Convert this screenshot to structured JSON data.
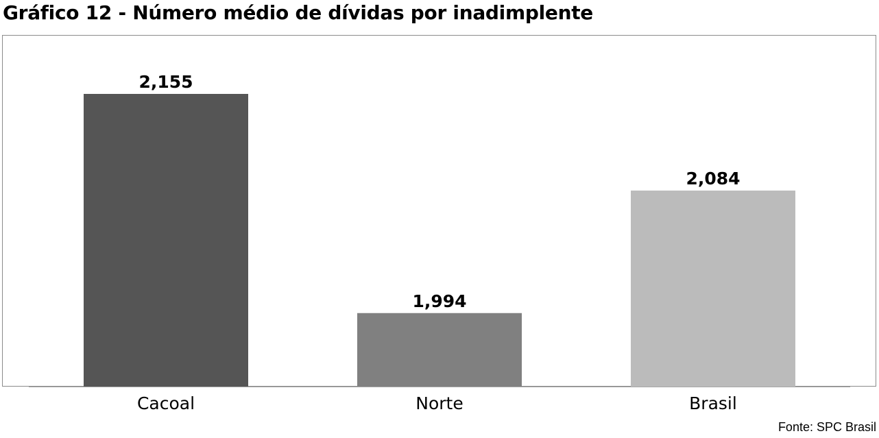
{
  "title": "Gráfico 12 - Número médio de dívidas por inadimplente",
  "source": "Fonte: SPC Brasil",
  "chart_data": {
    "type": "bar",
    "title": "Gráfico 12 - Número médio de dívidas por inadimplente",
    "categories": [
      "Cacoal",
      "Norte",
      "Brasil"
    ],
    "values": [
      2.155,
      1.994,
      2.084
    ],
    "value_labels": [
      "2,155",
      "1,994",
      "2,084"
    ],
    "colors": [
      "#555555",
      "#808080",
      "#bbbbbb"
    ],
    "xlabel": "",
    "ylabel": "",
    "ylim": [
      1.94,
      2.19
    ],
    "grid": false,
    "legend": "none"
  }
}
